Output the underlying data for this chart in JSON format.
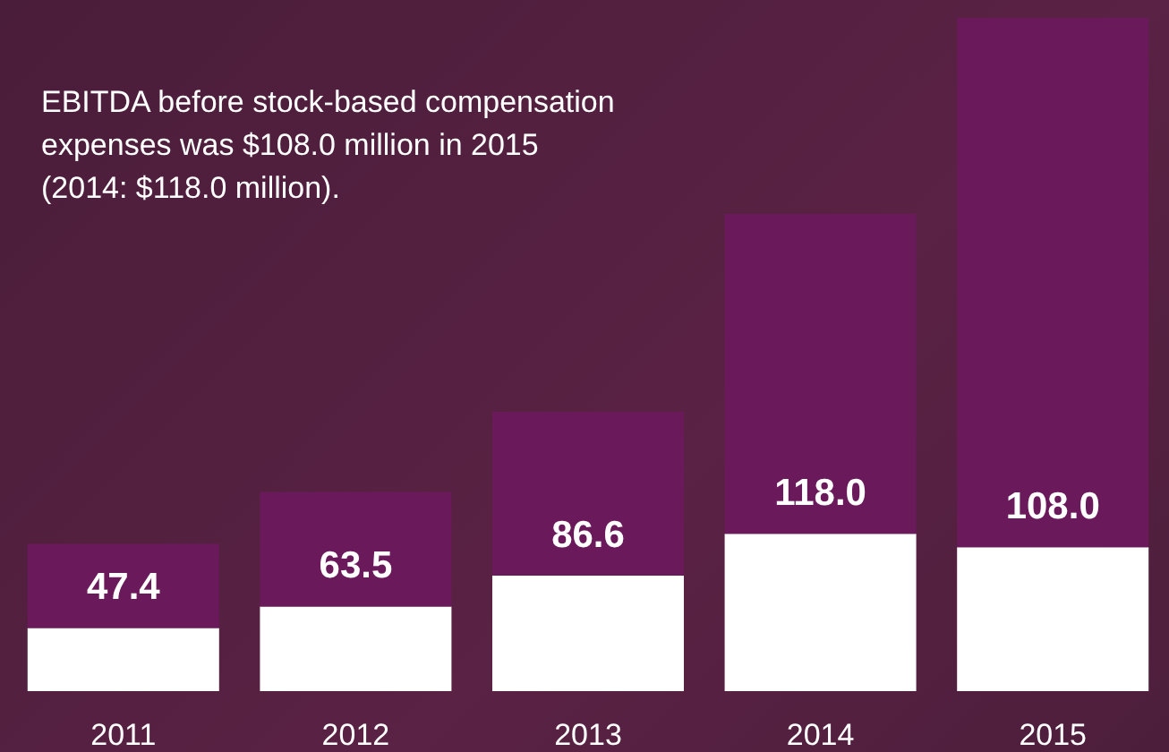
{
  "chart_data": {
    "type": "bar",
    "title": "EBITDA before stock-based compensation expenses was $108.0 million in 2015 (2014: $118.0 million).",
    "categories": [
      "2011",
      "2012",
      "2013",
      "2014",
      "2015"
    ],
    "stacked": true,
    "series": [
      {
        "color": "#ffffff",
        "values": [
          47.4,
          63.5,
          86.6,
          118.0,
          108.0
        ],
        "value_labels": [
          "47.4",
          "63.5",
          "86.6",
          "118.0",
          "108.0"
        ]
      },
      {
        "color": "#6a1a5a",
        "values": [
          63,
          86,
          123,
          240,
          397
        ]
      }
    ],
    "ylim": [
      0,
      505
    ],
    "tick_labels": "x"
  }
}
